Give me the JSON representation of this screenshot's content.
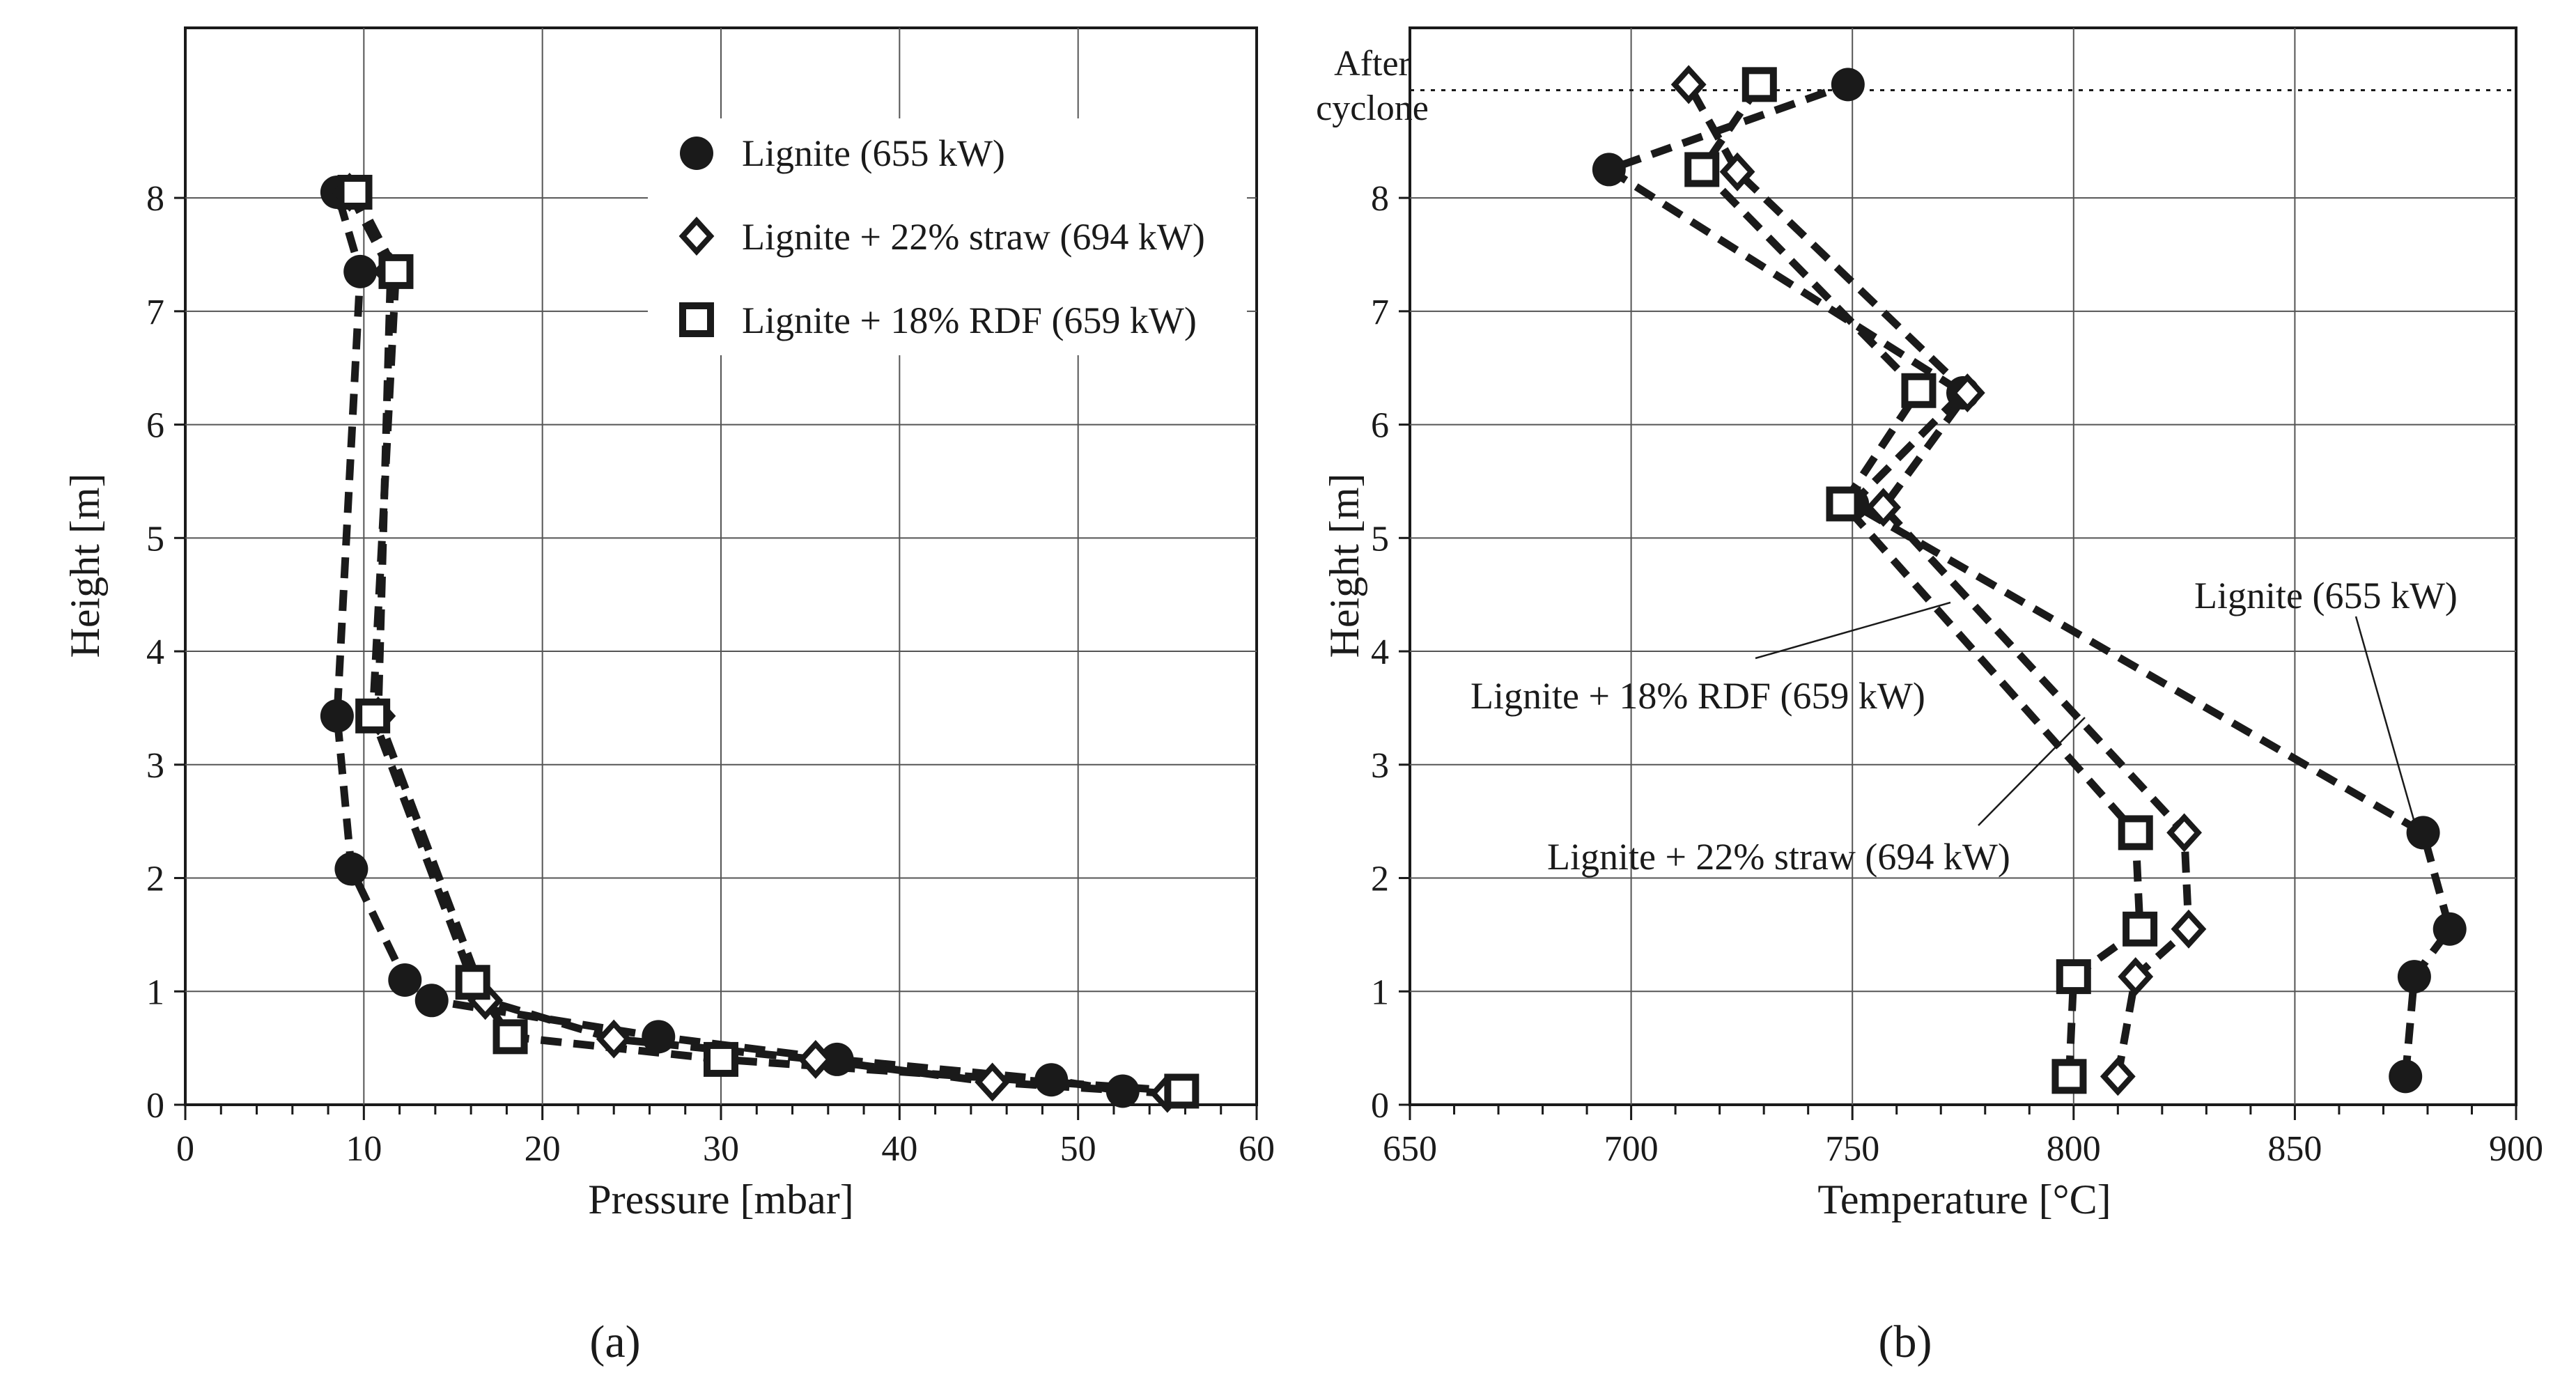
{
  "chart_data": [
    {
      "id": "a",
      "type": "line",
      "panel_label": "(a)",
      "xlabel": "Pressure [mbar]",
      "ylabel": "Height [m]",
      "xlim": [
        0,
        60
      ],
      "ylim": [
        0,
        9.5
      ],
      "xticks": [
        0,
        10,
        20,
        30,
        40,
        50,
        60
      ],
      "yticks": [
        0,
        1,
        2,
        3,
        4,
        5,
        6,
        7,
        8
      ],
      "grid": true,
      "legend": "top-right",
      "series": [
        {
          "name": "Lignite (655 kW)",
          "marker": "circle",
          "points": [
            [
              52.5,
              0.12
            ],
            [
              48.5,
              0.22
            ],
            [
              36.5,
              0.4
            ],
            [
              26.5,
              0.6
            ],
            [
              13.8,
              0.92
            ],
            [
              12.3,
              1.1
            ],
            [
              9.3,
              2.08
            ],
            [
              8.5,
              3.43
            ],
            [
              9.8,
              7.35
            ],
            [
              8.5,
              8.05
            ]
          ]
        },
        {
          "name": "Lignite + 22% straw (694 kW)",
          "marker": "diamond",
          "points": [
            [
              55,
              0.1
            ],
            [
              45.2,
              0.2
            ],
            [
              35.3,
              0.4
            ],
            [
              24,
              0.58
            ],
            [
              16.8,
              0.92
            ],
            [
              10.8,
              3.43
            ],
            [
              11.5,
              7.35
            ],
            [
              9.2,
              8.05
            ]
          ]
        },
        {
          "name": "Lignite + 18% RDF (659 kW)",
          "marker": "square",
          "points": [
            [
              55.8,
              0.12
            ],
            [
              30,
              0.4
            ],
            [
              18.2,
              0.6
            ],
            [
              16.1,
              1.08
            ],
            [
              10.5,
              3.43
            ],
            [
              11.8,
              7.35
            ],
            [
              9.5,
              8.05
            ]
          ]
        }
      ]
    },
    {
      "id": "b",
      "type": "line",
      "panel_label": "(b)",
      "xlabel": "Temperature [°C]",
      "ylabel": "Height [m]",
      "xlim": [
        650,
        900
      ],
      "ylim": [
        0,
        9.5
      ],
      "xticks": [
        650,
        700,
        750,
        800,
        850,
        900
      ],
      "yticks": [
        0,
        1,
        2,
        3,
        4,
        5,
        6,
        7,
        8
      ],
      "grid": true,
      "reference_line": {
        "y": 8.95,
        "label": [
          "After",
          "cyclone"
        ]
      },
      "annotations": [
        "Lignite (655 kW)",
        "Lignite + 18% RDF (659 kW)",
        "Lignite + 22% straw (694 kW)"
      ],
      "series": [
        {
          "name": "Lignite (655 kW)",
          "marker": "circle",
          "points": [
            [
              875,
              0.25
            ],
            [
              877,
              1.13
            ],
            [
              885,
              1.55
            ],
            [
              879,
              2.4
            ],
            [
              750,
              5.3
            ],
            [
              775,
              6.28
            ],
            [
              695,
              8.25
            ],
            [
              749,
              9.0
            ]
          ]
        },
        {
          "name": "Lignite + 22% straw (694 kW)",
          "marker": "diamond",
          "points": [
            [
              810,
              0.25
            ],
            [
              814,
              1.13
            ],
            [
              826,
              1.55
            ],
            [
              825,
              2.4
            ],
            [
              757,
              5.27
            ],
            [
              776,
              6.28
            ],
            [
              724,
              8.23
            ],
            [
              713,
              9.0
            ]
          ]
        },
        {
          "name": "Lignite + 18% RDF (659 kW)",
          "marker": "square",
          "points": [
            [
              799,
              0.25
            ],
            [
              800,
              1.13
            ],
            [
              815,
              1.55
            ],
            [
              814,
              2.4
            ],
            [
              748,
              5.3
            ],
            [
              765,
              6.3
            ],
            [
              716,
              8.25
            ],
            [
              729,
              9.0
            ]
          ]
        }
      ]
    }
  ]
}
